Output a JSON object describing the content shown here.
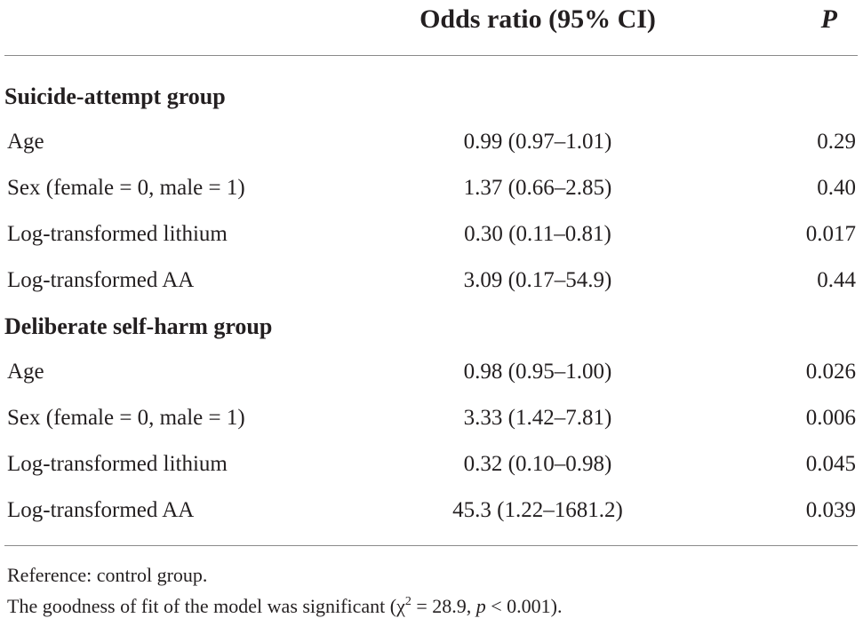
{
  "header": {
    "or_label": "Odds ratio (95% CI)",
    "p_label": "P"
  },
  "groups": [
    {
      "label": "Suicide-attempt group",
      "rows": [
        {
          "variable": "Age",
          "or_ci": "0.99 (0.97–1.01)",
          "p": "0.29"
        },
        {
          "variable": "Sex (female = 0, male = 1)",
          "or_ci": "1.37 (0.66–2.85)",
          "p": "0.40"
        },
        {
          "variable": "Log-transformed lithium",
          "or_ci": "0.30 (0.11–0.81)",
          "p": "0.017"
        },
        {
          "variable": "Log-transformed AA",
          "or_ci": "3.09 (0.17–54.9)",
          "p": "0.44"
        }
      ]
    },
    {
      "label": "Deliberate self-harm group",
      "rows": [
        {
          "variable": "Age",
          "or_ci": "0.98 (0.95–1.00)",
          "p": "0.026"
        },
        {
          "variable": "Sex (female = 0, male = 1)",
          "or_ci": "3.33 (1.42–7.81)",
          "p": "0.006"
        },
        {
          "variable": "Log-transformed lithium",
          "or_ci": "0.32 (0.10–0.98)",
          "p": "0.045"
        },
        {
          "variable": "Log-transformed AA",
          "or_ci": "45.3 (1.22–1681.2)",
          "p": "0.039"
        }
      ]
    }
  ],
  "footnotes": {
    "reference": "Reference: control group.",
    "fit_prefix": "The goodness of fit of the model was significant (χ",
    "fit_sup": "2",
    "fit_mid": " = 28.9, ",
    "fit_p": "p",
    "fit_suffix": " < 0.001)."
  }
}
